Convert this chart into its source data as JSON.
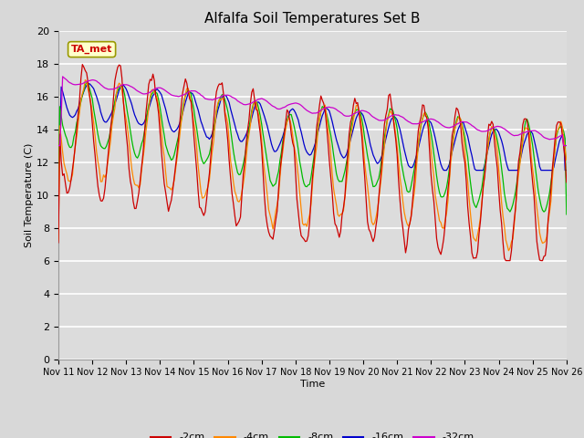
{
  "title": "Alfalfa Soil Temperatures Set B",
  "xlabel": "Time",
  "ylabel": "Soil Temperature (C)",
  "xlim": [
    0,
    360
  ],
  "ylim": [
    0,
    20
  ],
  "yticks": [
    0,
    2,
    4,
    6,
    8,
    10,
    12,
    14,
    16,
    18,
    20
  ],
  "xtick_labels": [
    "Nov 11",
    "Nov 12",
    "Nov 13",
    "Nov 14",
    "Nov 15",
    "Nov 16",
    "Nov 17",
    "Nov 18",
    "Nov 19",
    "Nov 20",
    "Nov 21",
    "Nov 22",
    "Nov 23",
    "Nov 24",
    "Nov 25",
    "Nov 26"
  ],
  "xtick_positions": [
    0,
    24,
    48,
    72,
    96,
    120,
    144,
    168,
    192,
    216,
    240,
    264,
    288,
    312,
    336,
    360
  ],
  "colors": {
    "-2cm": "#cc0000",
    "-4cm": "#ff8800",
    "-8cm": "#00bb00",
    "-16cm": "#0000cc",
    "-32cm": "#cc00cc"
  },
  "legend_label": "TA_met",
  "fig_bg": "#d8d8d8",
  "ax_bg": "#dcdcdc"
}
